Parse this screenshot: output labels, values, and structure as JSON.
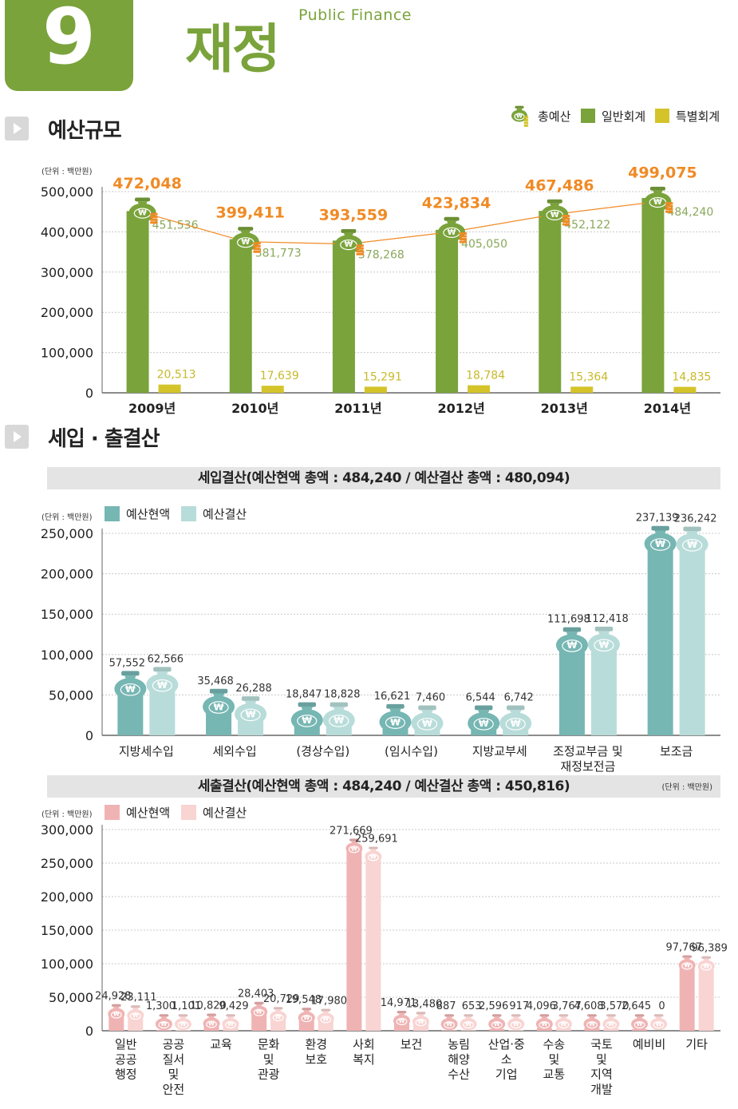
{
  "chapter": {
    "number": "9",
    "title": "재정",
    "subtitle": "Public Finance"
  },
  "sections": {
    "budget_size": "예산규모",
    "revenue_expenditure": "세입 · 출결산"
  },
  "colors": {
    "general": "#7aa33b",
    "special": "#d4c42a",
    "total_line": "#f08a24",
    "total_label": "#f08a24",
    "rev_current": "#76b6b3",
    "rev_settle": "#b8dcd9",
    "exp_current": "#f0b3b3",
    "exp_settle": "#f8d4d2"
  },
  "chart_data": [
    {
      "type": "bar",
      "unit_label": "(단위 : 백만원)",
      "legend": [
        "총예산",
        "일반회계",
        "특별회계"
      ],
      "categories": [
        "2009년",
        "2010년",
        "2011년",
        "2012년",
        "2013년",
        "2014년"
      ],
      "series": [
        {
          "name": "총예산",
          "values": [
            472048,
            399411,
            393559,
            423834,
            467486,
            499075
          ],
          "labels": [
            "472,048",
            "399,411",
            "393,559",
            "423,834",
            "467,486",
            "499,075"
          ]
        },
        {
          "name": "일반회계",
          "values": [
            451536,
            381773,
            378268,
            405050,
            452122,
            484240
          ],
          "labels": [
            "451,536",
            "381,773",
            "378,268",
            "405,050",
            "452,122",
            "484,240"
          ]
        },
        {
          "name": "특별회계",
          "values": [
            20513,
            17639,
            15291,
            18784,
            15364,
            14835
          ],
          "labels": [
            "20,513",
            "17,639",
            "15,291",
            "18,784",
            "15,364",
            "14,835"
          ]
        }
      ],
      "ylim": [
        0,
        500000
      ],
      "yticks": [
        "0",
        "100,000",
        "200,000",
        "300,000",
        "400,000",
        "500,000"
      ],
      "grid": true,
      "legend_position": "top-right"
    },
    {
      "type": "bar",
      "title": "세입결산(예산현액 총액 : 484,240 / 예산결산 총액 : 480,094)",
      "unit_label": "(단위 : 백만원)",
      "legend": [
        "예산현액",
        "예산결산"
      ],
      "categories": [
        "지방세수입",
        "세외수입",
        "(경상수입)",
        "(임시수입)",
        "지방교부세",
        "조정교부금 및\n재정보전금",
        "보조금"
      ],
      "series": [
        {
          "name": "예산현액",
          "values": [
            57552,
            35468,
            18847,
            16621,
            6544,
            111698,
            237139
          ],
          "labels": [
            "57,552",
            "35,468",
            "18,847",
            "16,621",
            "6,544",
            "111,698",
            "237,139"
          ]
        },
        {
          "name": "예산결산",
          "values": [
            62566,
            26288,
            18828,
            7460,
            6742,
            112418,
            236242
          ],
          "labels": [
            "62,566",
            "26,288",
            "18,828",
            "7,460",
            "6,742",
            "112,418",
            "236,242"
          ]
        }
      ],
      "ylim": [
        0,
        250000
      ],
      "yticks": [
        "0",
        "50,000",
        "100,000",
        "150,000",
        "200,000",
        "250,000"
      ],
      "grid": true,
      "legend_position": "top-left"
    },
    {
      "type": "bar",
      "title": "세출결산(예산현액 총액 : 484,240 / 예산결산 총액 : 450,816)",
      "unit_label": "(단위 : 백만원)",
      "unit_label_right": "(단위 : 백만원)",
      "legend": [
        "예산현액",
        "예산결산"
      ],
      "categories": [
        "일반\n공공\n행정",
        "공공\n질서\n및\n안전",
        "교육",
        "문화\n및\n관광",
        "환경\n보호",
        "사회\n복지",
        "보건",
        "농림\n해양\n수산",
        "산업·중\n소\n기업",
        "수송\n및\n교통",
        "국토\n및\n지역\n개발",
        "예비비",
        "기타"
      ],
      "series": [
        {
          "name": "예산현액",
          "values": [
            24928,
            1300,
            10820,
            28403,
            19548,
            271669,
            14971,
            887,
            2596,
            4096,
            4608,
            2645,
            97767
          ],
          "labels": [
            "24,928",
            "1,300",
            "10,820",
            "28,403",
            "19,548",
            "271,669",
            "14,971",
            "887",
            "2,596",
            "4,096",
            "4,608",
            "2,645",
            "97,767"
          ]
        },
        {
          "name": "예산결산",
          "values": [
            23111,
            1101,
            9429,
            20729,
            17980,
            259691,
            13480,
            653,
            917,
            3767,
            3570,
            0,
            96389
          ],
          "labels": [
            "23,111",
            "1,101",
            "9,429",
            "20,729",
            "17,980",
            "259,691",
            "13,480",
            "653",
            "917",
            "3,767",
            "3,570",
            "0",
            "96,389"
          ]
        }
      ],
      "ylim": [
        0,
        300000
      ],
      "yticks": [
        "0",
        "50,000",
        "100,000",
        "150,000",
        "200,000",
        "250,000",
        "300,000"
      ],
      "grid": true,
      "legend_position": "top-left"
    }
  ]
}
